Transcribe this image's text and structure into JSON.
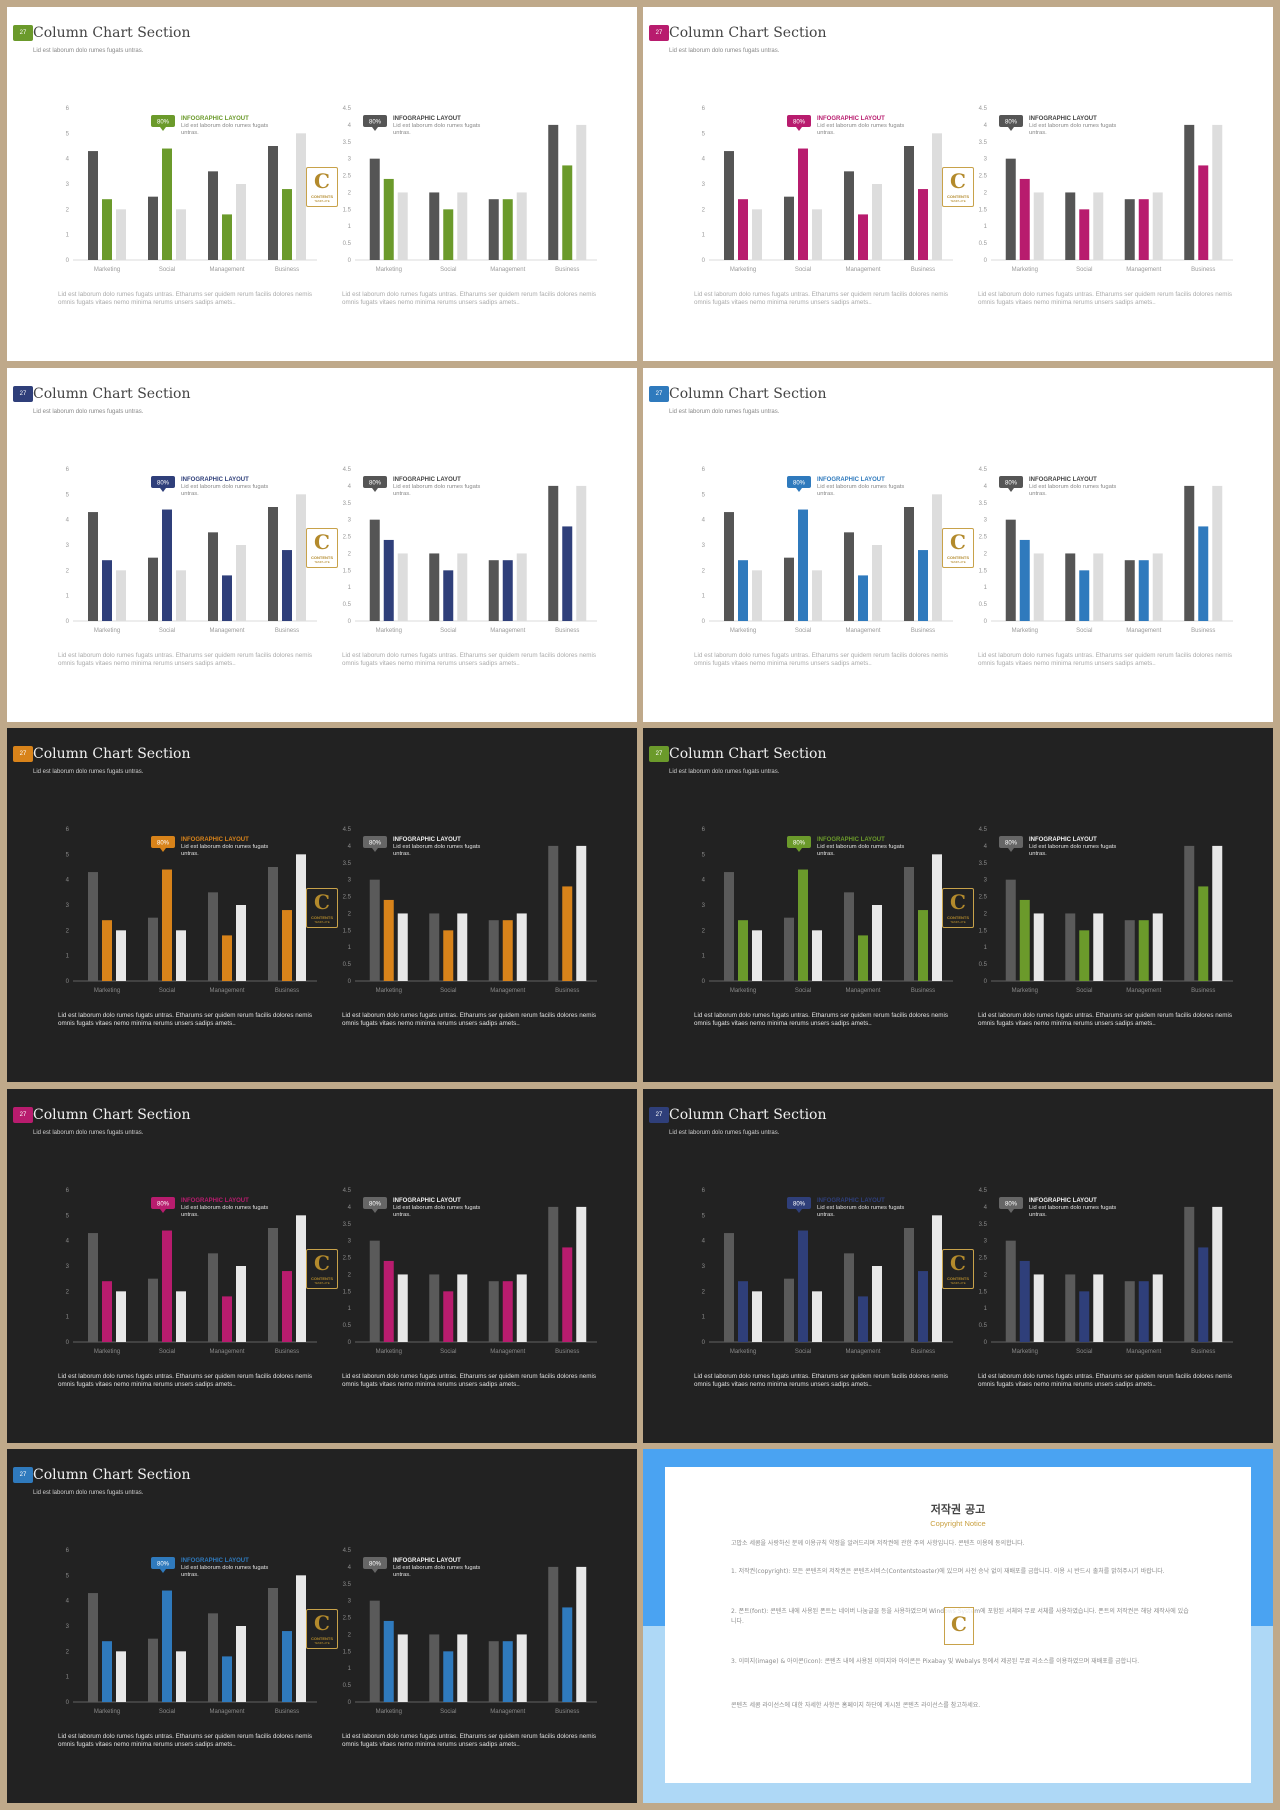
{
  "slide_common": {
    "title": "Column Chart Section",
    "subtitle": "Lid est laborum dolo rumes fugats untras.",
    "badge_number": "27",
    "callout_title": "INFOGRAPHIC LAYOUT",
    "callout_text_1": "Lid est laborum dolo rumes fugats",
    "callout_text_2": "untras.",
    "callout_value": "80%",
    "desc_line_1": "Lid est laborum dolo rumes fugats untras. Etharums ser quidem rerum facilis dolores nemis",
    "desc_line_2": "omnis fugats vitaes nemo minima rerums unsers sadips amets..",
    "logo_letter": "C",
    "logo_text": "CONTENTS",
    "logo_subtext": "TEMPLATE"
  },
  "slides": [
    {
      "theme": "light",
      "accent": "#6b9a2b"
    },
    {
      "theme": "light",
      "accent": "#b81c6e"
    },
    {
      "theme": "light",
      "accent": "#2f3f7a"
    },
    {
      "theme": "light",
      "accent": "#2f7abd"
    },
    {
      "theme": "dark",
      "accent": "#d8831a"
    },
    {
      "theme": "dark",
      "accent": "#6b9a2b"
    },
    {
      "theme": "dark",
      "accent": "#b81c6e"
    },
    {
      "theme": "dark",
      "accent": "#2f3f7a"
    },
    {
      "theme": "dark",
      "accent": "#2f7abd"
    }
  ],
  "chart_data": [
    {
      "type": "bar",
      "categories": [
        "Marketing",
        "Social",
        "Management",
        "Business"
      ],
      "ylim": [
        0,
        6
      ],
      "yticks": [
        "0",
        "1",
        "2",
        "3",
        "4",
        "5",
        "6"
      ],
      "series": [
        {
          "values": [
            4.3,
            2.5,
            3.5,
            4.5
          ],
          "color": "#555555"
        },
        {
          "values": [
            2.4,
            4.4,
            1.8,
            2.8
          ],
          "color": "accent"
        },
        {
          "values": [
            2.0,
            2.0,
            3.0,
            5.0
          ],
          "color": "#dddddd"
        }
      ],
      "callout_on_bar": {
        "series": 1,
        "category": "Social"
      }
    },
    {
      "type": "bar",
      "categories": [
        "Marketing",
        "Social",
        "Management",
        "Business"
      ],
      "ylim": [
        0,
        4.5
      ],
      "yticks": [
        "0",
        "0.5",
        "1",
        "1.5",
        "2",
        "2.5",
        "3",
        "3.5",
        "4",
        "4.5"
      ],
      "series": [
        {
          "values": [
            3.0,
            2.0,
            1.8,
            4.0
          ],
          "color": "#555555"
        },
        {
          "values": [
            2.4,
            1.5,
            1.8,
            2.8
          ],
          "color": "accent"
        },
        {
          "values": [
            2.0,
            2.0,
            2.0,
            4.0
          ],
          "color": "#dddddd"
        }
      ]
    }
  ],
  "notice": {
    "title": "저작권 공고",
    "subtitle": "Copyright Notice",
    "intro": "고맙소 세콤을 사랑하신 분께 이용규칙 약정을 알려드리며 저작권에 관한 주의 사항입니다. 콘텐츠 이용에 동의합니다.",
    "p1": "1. 저작권(copyright): 모든 콘텐츠의 저작권은 콘텐츠서비스(Contentstoaster)에 있으며 사전 승낙 없이 재배포를 금합니다. 이용 시 반드시 출처를 밝혀주시기 바랍니다.",
    "p2": "2. 폰트(font): 콘텐츠 내에 사용된 폰트는 네이버 나눔글꼴 등을 사용하였으며 Windows System에 포함된 서체와 무료 서체를 사용하였습니다. 폰트의 저작권은 해당 제작사에 있습니다.",
    "p3": "3. 이미지(image) & 아이콘(icon): 콘텐츠 내에 사용된 이미지와 아이콘은 Pixabay 및 Webalys 등에서 제공된 무료 리소스를 이용하였으며 재배포를 금합니다.",
    "closing": "콘텐츠 세콤 라이선스에 대한 자세한 사항은 홈페이지 하단에 게시된 콘텐츠 라이선스를 참고하세요.",
    "logo_letter": "C"
  }
}
